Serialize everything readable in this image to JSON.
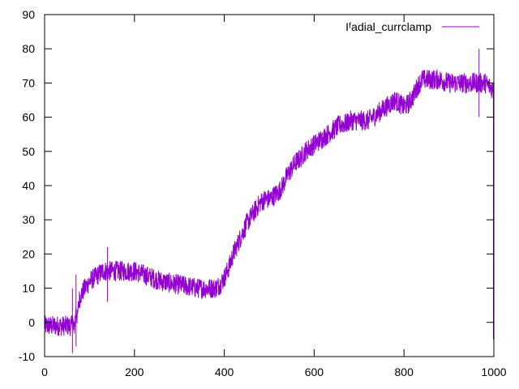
{
  "chart_data": {
    "type": "line",
    "title": "",
    "xlabel": "",
    "ylabel": "",
    "xlim": [
      0,
      1000
    ],
    "ylim": [
      -10,
      90
    ],
    "x_ticks": [
      "0",
      "200",
      "400",
      "600",
      "800",
      "1000"
    ],
    "y_ticks": [
      "-10",
      "0",
      "10",
      "20",
      "30",
      "40",
      "50",
      "60",
      "70",
      "80",
      "90"
    ],
    "grid": false,
    "legend_position": "top-right",
    "series": [
      {
        "name": "Iᶠadial_currclamp",
        "color": "#9400d3",
        "noise_band": 3,
        "x": [
          0,
          60,
          62,
          65,
          68,
          70,
          73,
          76,
          80,
          90,
          100,
          110,
          120,
          130,
          140,
          160,
          180,
          200,
          220,
          240,
          260,
          280,
          300,
          320,
          340,
          360,
          380,
          390,
          400,
          410,
          420,
          430,
          440,
          450,
          460,
          470,
          480,
          490,
          500,
          510,
          520,
          530,
          540,
          550,
          560,
          570,
          580,
          590,
          600,
          610,
          620,
          630,
          640,
          650,
          660,
          670,
          680,
          690,
          700,
          710,
          720,
          730,
          740,
          750,
          760,
          770,
          780,
          790,
          800,
          810,
          820,
          830,
          840,
          850,
          860,
          870,
          880,
          900,
          920,
          940,
          960,
          980,
          1000
        ],
        "y": [
          -1,
          -1,
          2,
          -3,
          1,
          4,
          1,
          6,
          8,
          10,
          12,
          13,
          14,
          15,
          15,
          15,
          15,
          15,
          14,
          13,
          12,
          11.5,
          11,
          10.5,
          10,
          10,
          10,
          11,
          13,
          16,
          20,
          23,
          26,
          29,
          31,
          33,
          35,
          36,
          36,
          37,
          38,
          40,
          43,
          45,
          47,
          48,
          50,
          51,
          52,
          53,
          54,
          55,
          56,
          57,
          58,
          58,
          59,
          59,
          59,
          59,
          59,
          60,
          61,
          62,
          63,
          64,
          65,
          64,
          63,
          64,
          66,
          69,
          71,
          71,
          71,
          71,
          71,
          70,
          70,
          70,
          70,
          70,
          68
        ]
      }
    ],
    "spikes": [
      {
        "x": 62,
        "low": -9,
        "high": 10
      },
      {
        "x": 70,
        "low": -7,
        "high": 14
      },
      {
        "x": 140,
        "low": 6,
        "high": 22
      },
      {
        "x": 967,
        "low": 60,
        "high": 80
      },
      {
        "x": 999,
        "low": -5,
        "high": 70
      }
    ]
  }
}
